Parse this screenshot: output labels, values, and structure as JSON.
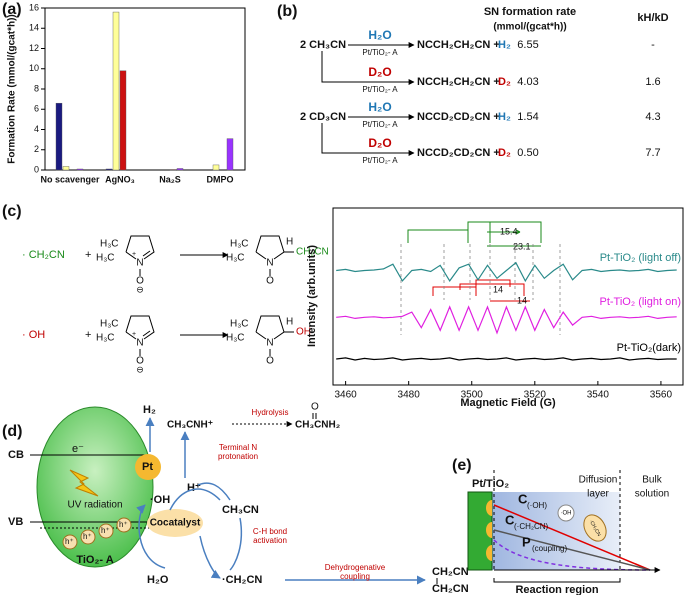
{
  "chart_data": [
    {
      "type": "bar",
      "label": "(a)",
      "ylabel": "Formation Rate (mmol/(gcat*h))",
      "categories": [
        "No scavenger",
        "AgNO₃",
        "Na₂S",
        "DMPO"
      ],
      "series": [
        {
          "color": "#1a1a80",
          "values": [
            6.6,
            0.1,
            0,
            0
          ]
        },
        {
          "color": "#ffff99",
          "values": [
            0.35,
            15.6,
            0,
            0.5
          ]
        },
        {
          "color": "#cc1111",
          "values": [
            0,
            9.8,
            0.05,
            0
          ]
        },
        {
          "color": "#9933ff",
          "values": [
            0.1,
            0,
            0.15,
            3.1
          ]
        }
      ],
      "ylim": [
        0,
        16
      ],
      "yticks": [
        0,
        2,
        4,
        6,
        8,
        10,
        12,
        14,
        16
      ]
    },
    {
      "type": "line",
      "label": "(c)",
      "xlabel": "Magnetic Field (G)",
      "ylabel": "Intensity (arb.units)",
      "x": [
        3457,
        3460,
        3463,
        3466,
        3469,
        3472,
        3475,
        3478,
        3481,
        3484,
        3487,
        3490,
        3493,
        3496,
        3499,
        3502,
        3505,
        3508,
        3511,
        3514,
        3517,
        3520,
        3523,
        3526,
        3529,
        3532,
        3535,
        3538,
        3541,
        3544,
        3547,
        3550,
        3553,
        3556,
        3559,
        3562,
        3565
      ],
      "series": [
        {
          "name": "Pt-TiO₂ (light off)",
          "color": "#2a8a8a",
          "values": [
            2.0,
            2.02,
            1.98,
            2.0,
            2.01,
            2.03,
            2.12,
            1.8,
            2.0,
            2.02,
            1.98,
            2.1,
            1.8,
            2.05,
            2.12,
            1.82,
            2.1,
            1.85,
            2.0,
            2.15,
            1.8,
            2.1,
            1.85,
            2.0,
            2.12,
            1.82,
            2.0,
            2.02,
            1.98,
            2.0,
            2.01,
            1.99,
            2.0,
            2.02,
            1.98,
            2.0,
            2.01
          ]
        },
        {
          "name": "Pt-TiO₂ (light on)",
          "color": "#e020e0",
          "values": [
            1.1,
            1.12,
            1.08,
            1.1,
            1.11,
            1.09,
            1.1,
            1.12,
            1.2,
            0.9,
            1.25,
            0.85,
            1.3,
            0.85,
            1.3,
            0.85,
            1.3,
            0.8,
            1.3,
            0.85,
            1.3,
            0.85,
            1.25,
            0.9,
            1.2,
            0.95,
            1.1,
            1.12,
            1.08,
            1.1,
            1.11,
            1.09,
            1.1,
            1.12,
            1.08,
            1.1,
            1.11
          ]
        },
        {
          "name": "Pt-TiO₂(dark)",
          "color": "#000000",
          "values": [
            0.3,
            0.32,
            0.28,
            0.31,
            0.29,
            0.3,
            0.32,
            0.28,
            0.3,
            0.31,
            0.29,
            0.3,
            0.32,
            0.28,
            0.3,
            0.31,
            0.29,
            0.3,
            0.32,
            0.28,
            0.3,
            0.31,
            0.29,
            0.3,
            0.32,
            0.28,
            0.3,
            0.31,
            0.29,
            0.3,
            0.32,
            0.28,
            0.3,
            0.31,
            0.29,
            0.3,
            0.3
          ]
        }
      ],
      "xlim": [
        3456,
        3567
      ],
      "xticks": [
        3460,
        3480,
        3500,
        3520,
        3540,
        3560
      ],
      "ylim": [
        -0.2,
        3.2
      ],
      "annotations": [
        "15.4",
        "23.1",
        "14",
        "14"
      ]
    }
  ],
  "table_b": {
    "label": "(b)",
    "header_rate": "SN formation rate",
    "header_units": "(mmol/(gcat*h))",
    "header_k": "kH/kD",
    "reactants": [
      "2 CH₃CN",
      "2 CD₃CN"
    ],
    "catalyst": "Pt/TiO₂- A",
    "rows": [
      {
        "reagent": "H₂O",
        "product": "NCCH₂CH₂CN +",
        "gas": "H₂",
        "rate": "6.55",
        "k": "-"
      },
      {
        "reagent": "D₂O",
        "product": "NCCH₂CH₂CN +",
        "gas": "D₂",
        "rate": "4.03",
        "k": "1.6"
      },
      {
        "reagent": "H₂O",
        "product": "NCCD₂CD₂CN +",
        "gas": "H₂",
        "rate": "1.54",
        "k": "4.3"
      },
      {
        "reagent": "D₂O",
        "product": "NCCD₂CD₂CN +",
        "gas": "D₂",
        "rate": "0.50",
        "k": "7.7"
      }
    ]
  },
  "scheme_c": {
    "radicals": [
      "· CH₂CN",
      "· OH"
    ],
    "plus": "+",
    "methyl": "H₃C",
    "n": "N",
    "o": "O",
    "charge": "⊖",
    "cation": "+",
    "substituents": [
      "CH₂CN",
      "OH"
    ],
    "h": "H"
  },
  "diagram_d": {
    "label": "(d)",
    "cb": "CB",
    "vb": "VB",
    "electron": "e⁻",
    "pt": "Pt",
    "uv": "UV radiation",
    "hole": "h⁺",
    "tio2": "TiO₂- A",
    "h2": "H₂",
    "hplus": "H⁺",
    "protonated": "CH₃CNH⁺",
    "protonation": [
      "Terminal N",
      "protonation"
    ],
    "hydrolysis": "Hydrolysis",
    "oxygen": "O",
    "amide": "CH₃CNH₂",
    "acetonitrile": "CH₃CN",
    "oh": "·OH",
    "activation": [
      "C-H bond",
      "activation"
    ],
    "cocatalyst": "Cocatalyst",
    "water": "H₂O",
    "radical": "·CH₂CN",
    "coupling": [
      "Dehydrogenative",
      "coupling"
    ],
    "dimer": "CH₂CN"
  },
  "diagram_e": {
    "label": "(e)",
    "surface": "Pt/TiO₂",
    "c": "C",
    "c_oh": "(·OH)",
    "c_ch2cn": "(·CH₂CN)",
    "p": "P",
    "p_sub": "(coupling)",
    "oh": "·OH",
    "ch2cn": "·CH₂CN",
    "diffusion": [
      "Diffusion",
      "layer"
    ],
    "bulk": [
      "Bulk",
      "solution"
    ],
    "region": "Reaction region"
  }
}
